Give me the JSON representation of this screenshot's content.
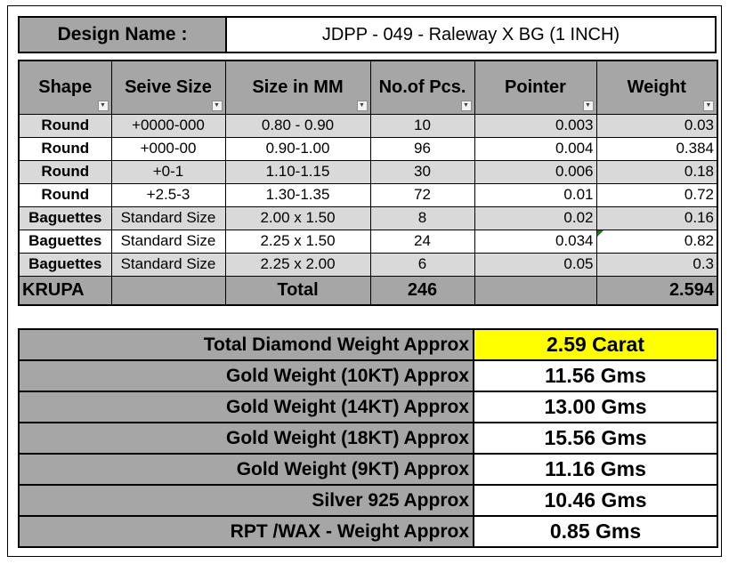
{
  "design": {
    "label": "Design Name :",
    "value": "JDPP - 049 - Raleway X BG (1 INCH)"
  },
  "table": {
    "headers": [
      "Shape",
      "Seive Size",
      "Size in MM",
      "No.of Pcs.",
      "Pointer",
      "Weight"
    ],
    "rows": [
      [
        "Round",
        "+0000-000",
        "0.80 - 0.90",
        "10",
        "0.003",
        "0.03"
      ],
      [
        "Round",
        "+000-00",
        "0.90-1.00",
        "96",
        "0.004",
        "0.384"
      ],
      [
        "Round",
        "+0-1",
        "1.10-1.15",
        "30",
        "0.006",
        "0.18"
      ],
      [
        "Round",
        "+2.5-3",
        "1.30-1.35",
        "72",
        "0.01",
        "0.72"
      ],
      [
        "Baguettes",
        "Standard Size",
        "2.00 x 1.50",
        "8",
        "0.02",
        "0.16"
      ],
      [
        "Baguettes",
        "Standard Size",
        "2.25 x 1.50",
        "24",
        "0.034",
        "0.82"
      ],
      [
        "Baguettes",
        "Standard Size",
        "2.25 x 2.00",
        "6",
        "0.05",
        "0.3"
      ]
    ],
    "total": {
      "label_left": "KRUPA",
      "label": "Total",
      "pcs": "246",
      "weight": "2.594"
    }
  },
  "summary": [
    {
      "label": "Total Diamond Weight Approx",
      "value": "2.59 Carat"
    },
    {
      "label": "Gold Weight (10KT) Approx",
      "value": "11.56 Gms"
    },
    {
      "label": "Gold Weight (14KT) Approx",
      "value": "13.00 Gms"
    },
    {
      "label": "Gold Weight (18KT) Approx",
      "value": "15.56 Gms"
    },
    {
      "label": "Gold Weight (9KT) Approx",
      "value": "11.16 Gms"
    },
    {
      "label": "Silver 925 Approx",
      "value": "10.46 Gms"
    },
    {
      "label": "RPT /WAX - Weight Approx",
      "value": "0.85 Gms"
    }
  ],
  "colors": {
    "header_gray": "#a6a6a6",
    "row_gray": "#d9d9d9",
    "highlight": "#ffff00"
  },
  "icons": {
    "filter_dropdown": "chevron-down-icon",
    "active_filter": "filter-icon"
  }
}
